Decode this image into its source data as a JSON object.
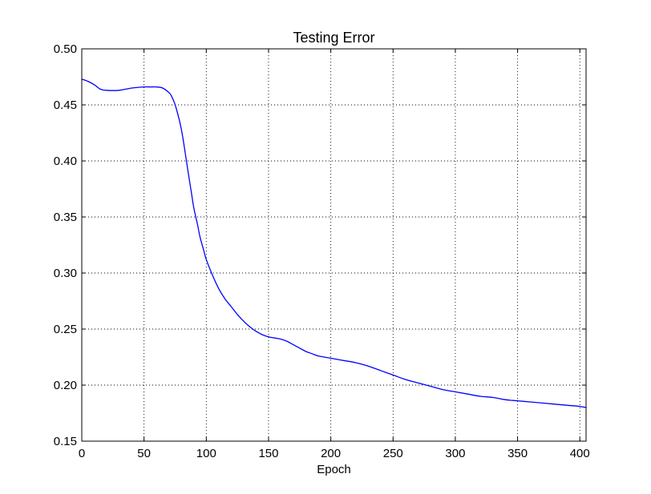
{
  "chart_data": {
    "type": "line",
    "title": "Testing Error",
    "xlabel": "Epoch",
    "ylabel": "",
    "xlim": [
      0,
      405
    ],
    "ylim": [
      0.15,
      0.5
    ],
    "x_ticks": [
      0,
      50,
      100,
      150,
      200,
      250,
      300,
      350,
      400
    ],
    "x_tick_labels": [
      "0",
      "50",
      "100",
      "150",
      "200",
      "250",
      "300",
      "350",
      "400"
    ],
    "y_ticks": [
      0.15,
      0.2,
      0.25,
      0.3,
      0.35,
      0.4,
      0.45,
      0.5
    ],
    "y_tick_labels": [
      "0.15",
      "0.20",
      "0.25",
      "0.30",
      "0.35",
      "0.40",
      "0.45",
      "0.50"
    ],
    "grid": true,
    "legend": "none",
    "series": [
      {
        "color": "#0000ff",
        "x": [
          0,
          5,
          10,
          15,
          20,
          30,
          40,
          50,
          55,
          60,
          65,
          70,
          72,
          75,
          78,
          80,
          82,
          85,
          88,
          90,
          93,
          95,
          98,
          100,
          105,
          110,
          115,
          120,
          125,
          130,
          135,
          140,
          145,
          150,
          155,
          160,
          165,
          170,
          175,
          180,
          185,
          190,
          200,
          210,
          220,
          230,
          240,
          250,
          260,
          270,
          280,
          290,
          300,
          310,
          320,
          330,
          340,
          350,
          360,
          370,
          380,
          390,
          400,
          405
        ],
        "y": [
          0.473,
          0.471,
          0.468,
          0.464,
          0.463,
          0.463,
          0.465,
          0.466,
          0.466,
          0.466,
          0.465,
          0.461,
          0.458,
          0.45,
          0.438,
          0.428,
          0.415,
          0.393,
          0.372,
          0.358,
          0.343,
          0.332,
          0.32,
          0.312,
          0.298,
          0.286,
          0.277,
          0.27,
          0.263,
          0.257,
          0.252,
          0.248,
          0.245,
          0.243,
          0.242,
          0.241,
          0.239,
          0.236,
          0.233,
          0.23,
          0.228,
          0.226,
          0.224,
          0.222,
          0.22,
          0.217,
          0.213,
          0.209,
          0.205,
          0.202,
          0.199,
          0.196,
          0.194,
          0.192,
          0.19,
          0.189,
          0.187,
          0.186,
          0.185,
          0.184,
          0.183,
          0.182,
          0.181,
          0.18
        ]
      }
    ]
  }
}
